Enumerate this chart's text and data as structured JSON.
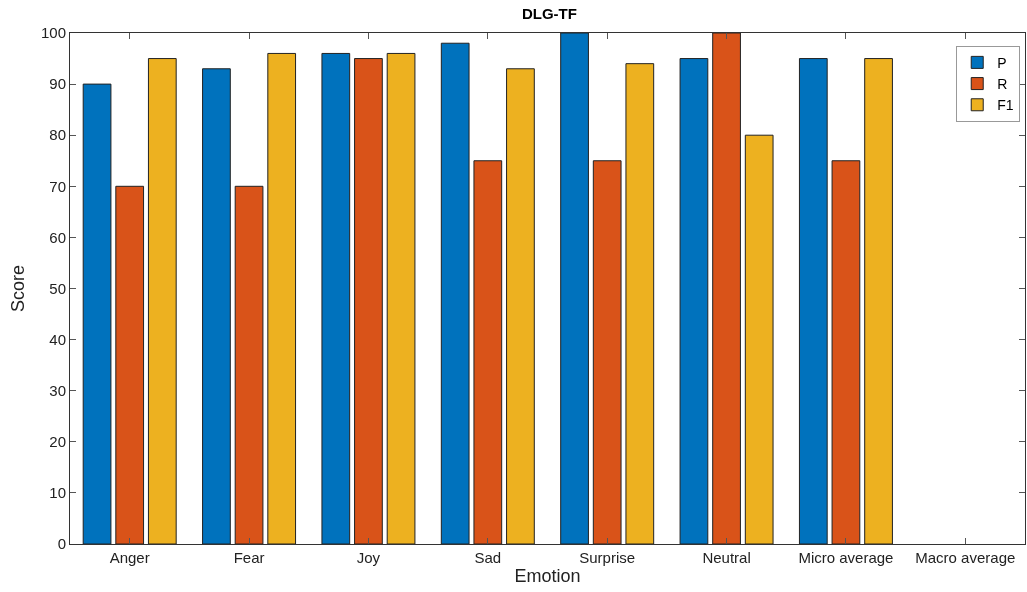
{
  "chart_data": {
    "type": "bar",
    "title": "DLG-TF",
    "xlabel": "Emotion",
    "ylabel": "Score",
    "categories": [
      "Anger",
      "Fear",
      "Joy",
      "Sad",
      "Surprise",
      "Neutral",
      "Micro average",
      "Macro average"
    ],
    "series": [
      {
        "name": "P",
        "color": "#0072bd",
        "values": [
          90,
          93,
          96,
          98,
          100,
          95,
          95,
          null
        ]
      },
      {
        "name": "R",
        "color": "#d95319",
        "values": [
          70,
          70,
          95,
          75,
          75,
          100,
          75,
          null
        ]
      },
      {
        "name": "F1",
        "color": "#edb120",
        "values": [
          95,
          96,
          96,
          93,
          94,
          80,
          95,
          null
        ]
      }
    ],
    "ylim": [
      0,
      100
    ],
    "yticks": [
      0,
      10,
      20,
      30,
      40,
      50,
      60,
      70,
      80,
      90,
      100
    ],
    "grid": false,
    "legend": "top right"
  }
}
